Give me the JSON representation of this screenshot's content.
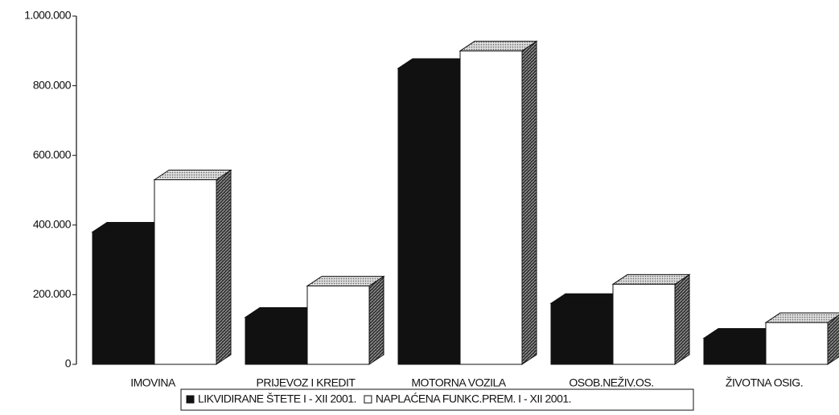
{
  "chart_data": {
    "type": "bar3d",
    "categories": [
      "IMOVINA",
      "PRIJEVOZ I KREDIT",
      "MOTORNA VOZILA",
      "OSOB.NEŽIV.OS.",
      "ŽIVOTNA OSIG."
    ],
    "series": [
      {
        "name": "LIKVIDIRANE ŠTETE I - XII 2001.",
        "color": "#111111",
        "values": [
          380000,
          135000,
          850000,
          175000,
          75000
        ]
      },
      {
        "name": "NAPLAĆENA FUNKC.PREM. I - XII 2001.",
        "color": "#ffffff",
        "values": [
          530000,
          225000,
          900000,
          230000,
          120000
        ]
      }
    ],
    "ylim": [
      0,
      1000000
    ],
    "yticks": [
      0,
      {
        "value": 200000,
        "label": "200.000"
      },
      {
        "value": 400000,
        "label": "400.000"
      },
      {
        "value": 600000,
        "label": "600.000"
      },
      {
        "value": 800000,
        "label": "800.000"
      },
      {
        "value": 1000000,
        "label": "1.000.000"
      }
    ],
    "grid": false,
    "legend": "bottom"
  }
}
